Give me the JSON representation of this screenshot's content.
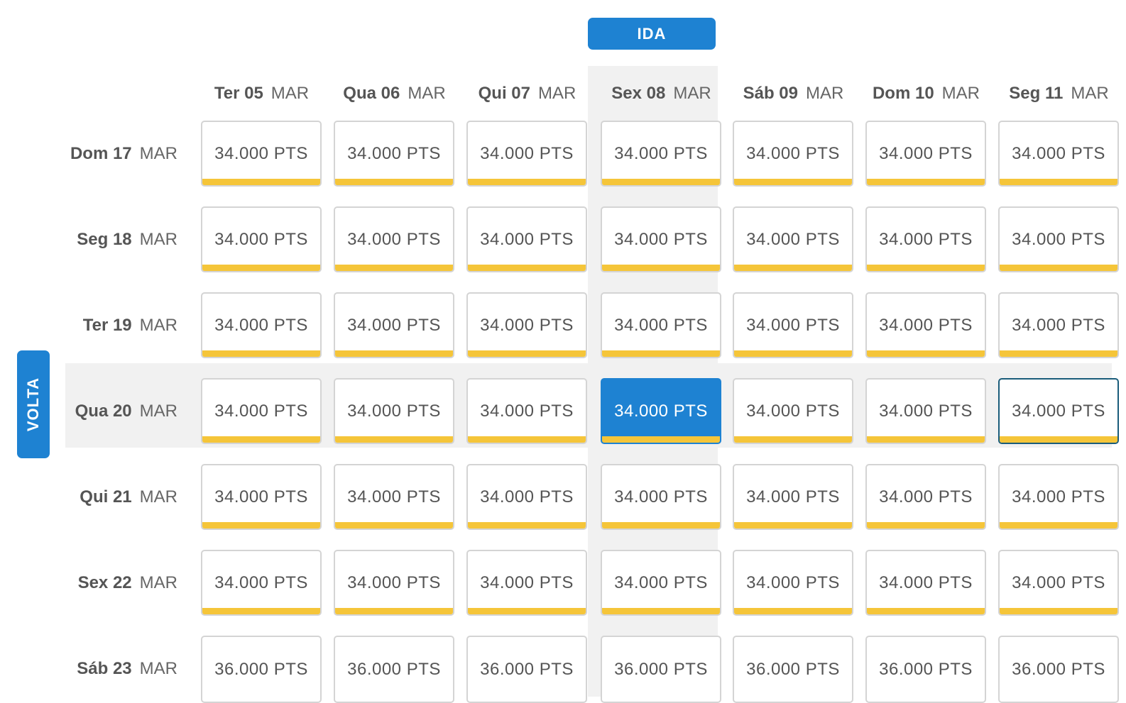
{
  "ida_label": "IDA",
  "volta_label": "VOLTA",
  "columns": [
    {
      "day": "Ter 05",
      "month": "MAR"
    },
    {
      "day": "Qua 06",
      "month": "MAR"
    },
    {
      "day": "Qui 07",
      "month": "MAR"
    },
    {
      "day": "Sex 08",
      "month": "MAR"
    },
    {
      "day": "Sáb 09",
      "month": "MAR"
    },
    {
      "day": "Dom 10",
      "month": "MAR"
    },
    {
      "day": "Seg 11",
      "month": "MAR"
    }
  ],
  "rows": [
    {
      "day": "Dom 17",
      "month": "MAR",
      "prices": [
        "34.000 PTS",
        "34.000 PTS",
        "34.000 PTS",
        "34.000 PTS",
        "34.000 PTS",
        "34.000 PTS",
        "34.000 PTS"
      ]
    },
    {
      "day": "Seg 18",
      "month": "MAR",
      "prices": [
        "34.000 PTS",
        "34.000 PTS",
        "34.000 PTS",
        "34.000 PTS",
        "34.000 PTS",
        "34.000 PTS",
        "34.000 PTS"
      ]
    },
    {
      "day": "Ter 19",
      "month": "MAR",
      "prices": [
        "34.000 PTS",
        "34.000 PTS",
        "34.000 PTS",
        "34.000 PTS",
        "34.000 PTS",
        "34.000 PTS",
        "34.000 PTS"
      ]
    },
    {
      "day": "Qua 20",
      "month": "MAR",
      "prices": [
        "34.000 PTS",
        "34.000 PTS",
        "34.000 PTS",
        "34.000 PTS",
        "34.000 PTS",
        "34.000 PTS",
        "34.000 PTS"
      ]
    },
    {
      "day": "Qui 21",
      "month": "MAR",
      "prices": [
        "34.000 PTS",
        "34.000 PTS",
        "34.000 PTS",
        "34.000 PTS",
        "34.000 PTS",
        "34.000 PTS",
        "34.000 PTS"
      ]
    },
    {
      "day": "Sex 22",
      "month": "MAR",
      "prices": [
        "34.000 PTS",
        "34.000 PTS",
        "34.000 PTS",
        "34.000 PTS",
        "34.000 PTS",
        "34.000 PTS",
        "34.000 PTS"
      ]
    },
    {
      "day": "Sáb 23",
      "month": "MAR",
      "prices": [
        "36.000 PTS",
        "36.000 PTS",
        "36.000 PTS",
        "36.000 PTS",
        "36.000 PTS",
        "36.000 PTS",
        "36.000 PTS"
      ]
    }
  ],
  "selected": {
    "row": 3,
    "col": 3
  },
  "focused": {
    "row": 3,
    "col": 6
  },
  "no_bar_rows": [
    6
  ],
  "colors": {
    "accent": "#1e82d2",
    "bar": "#f5c539",
    "highlight": "#f1f1f1"
  }
}
